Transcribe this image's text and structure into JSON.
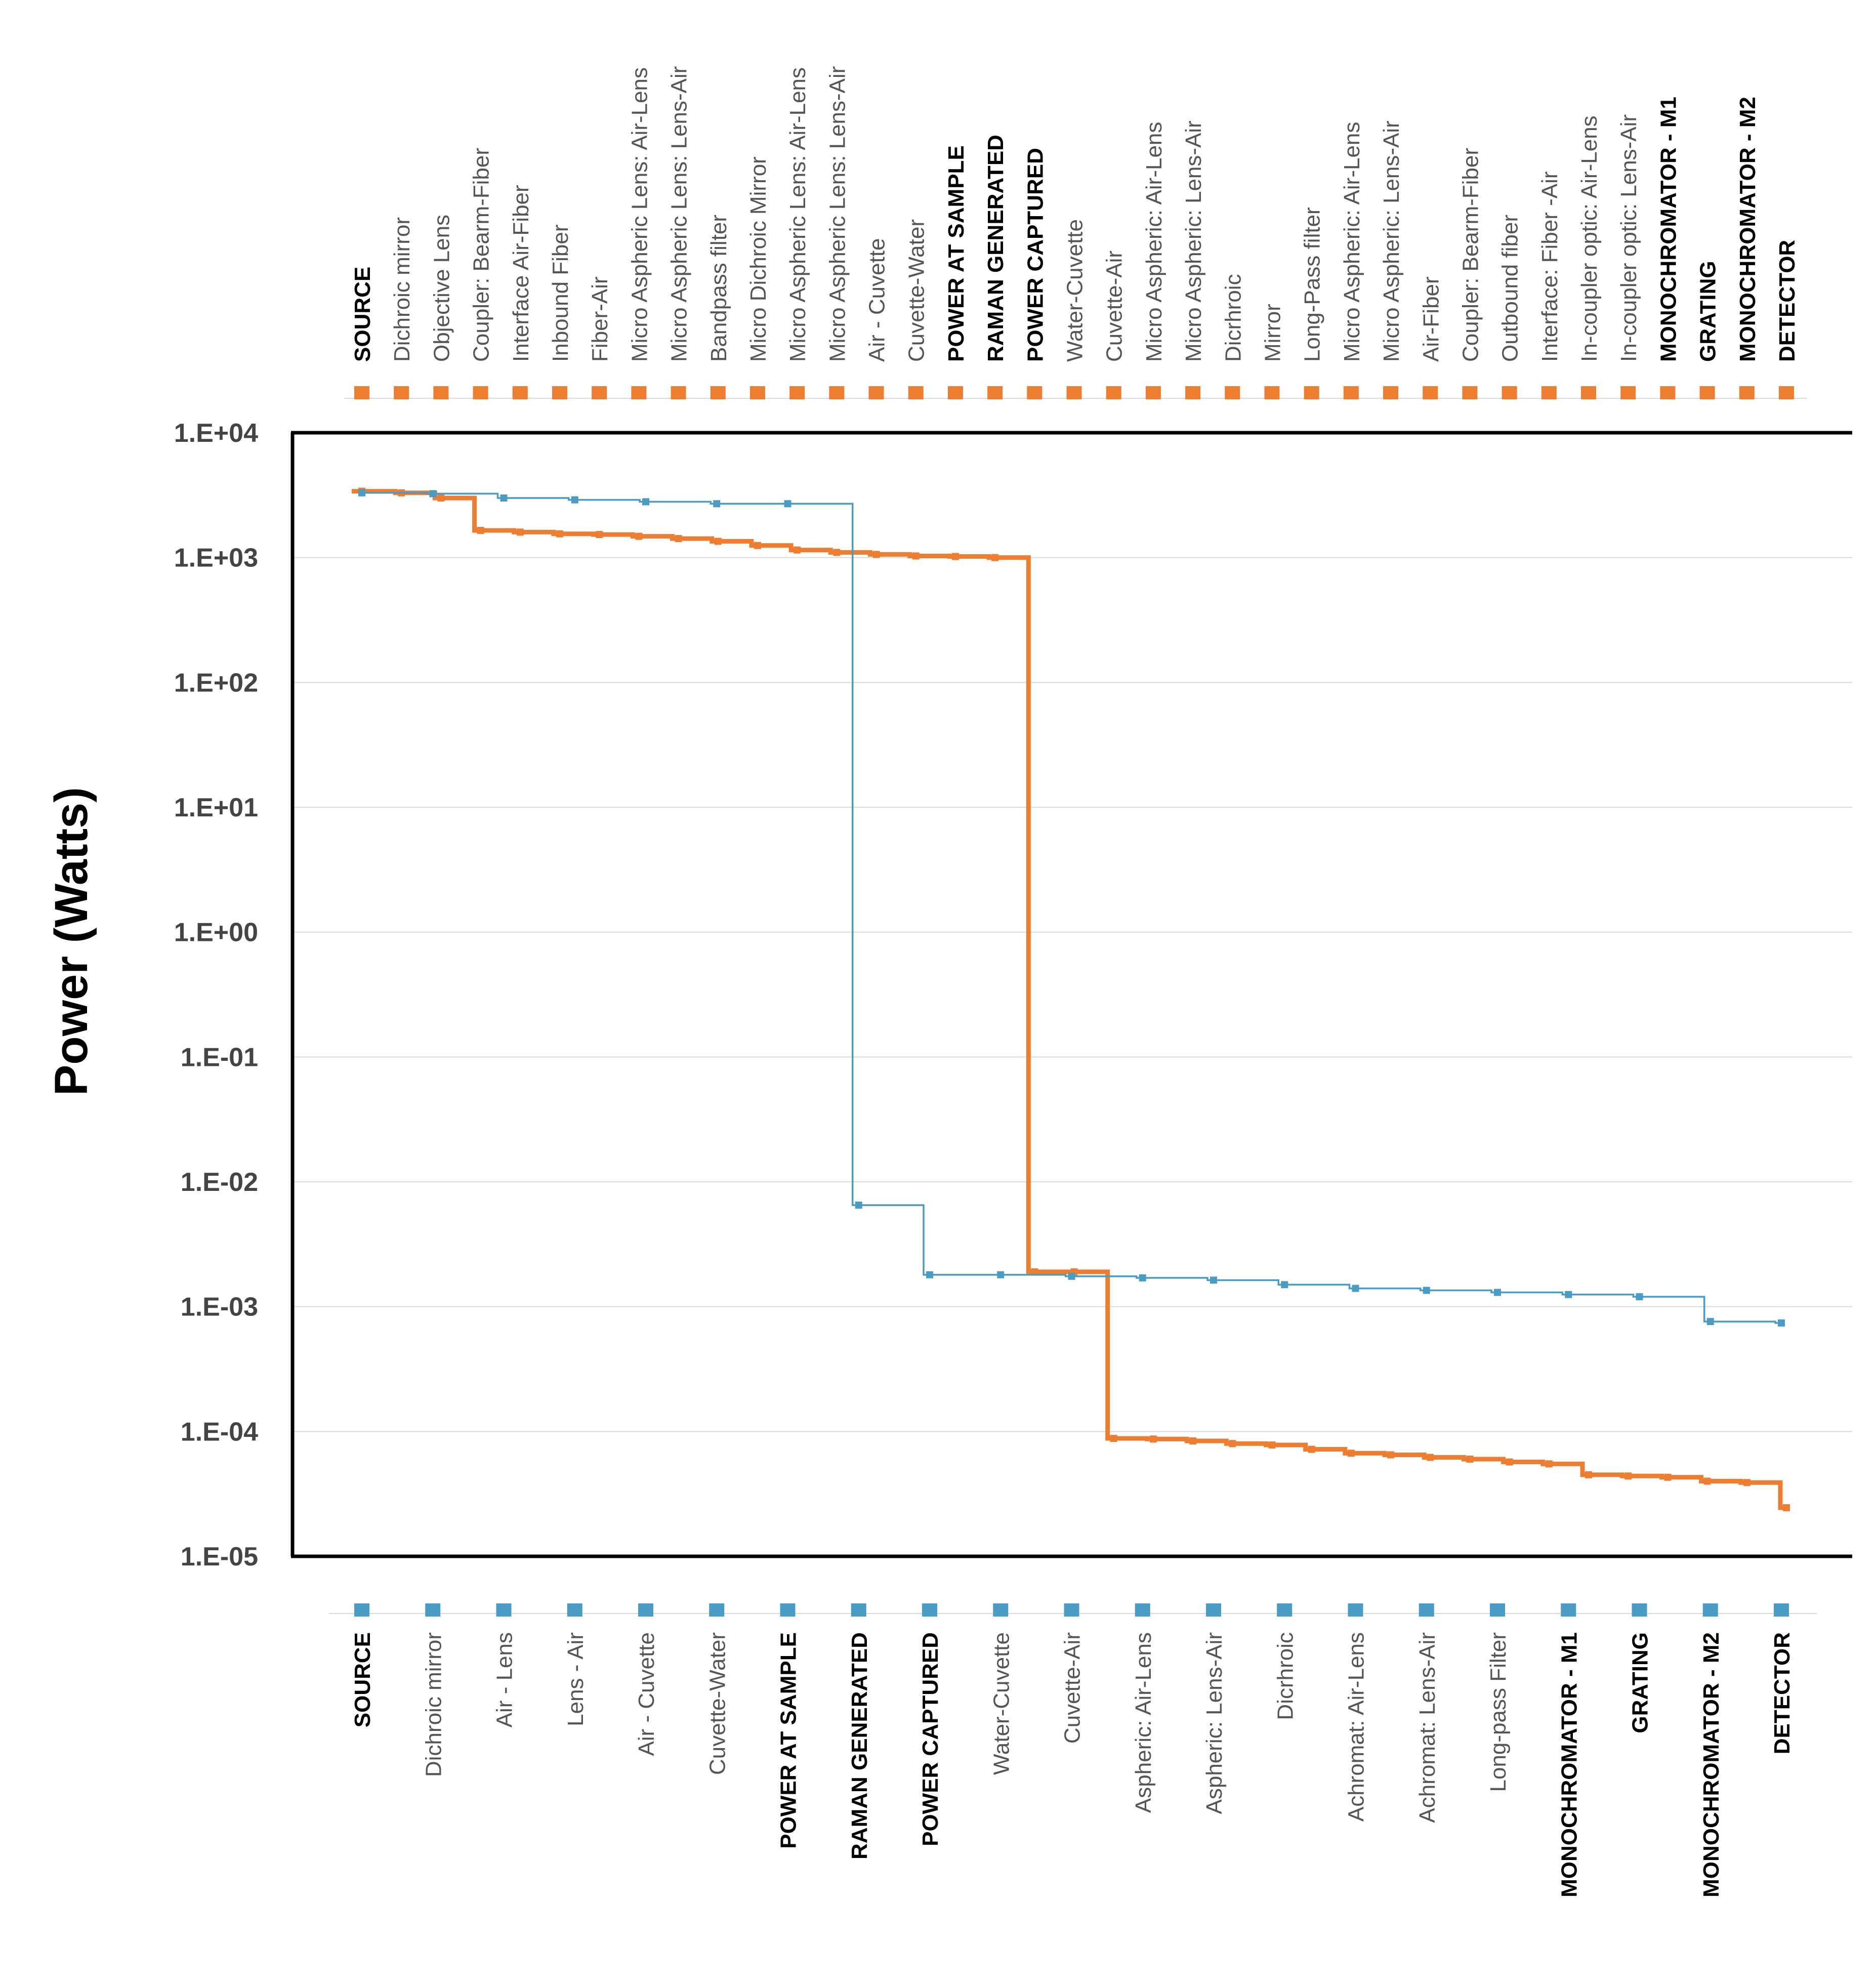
{
  "chart_data": {
    "type": "line",
    "ylabel": "Power (Watts)",
    "yscale": "log",
    "ylim": [
      1e-05,
      10000.0
    ],
    "yticks": [
      "1.E+04",
      "1.E+03",
      "1.E+02",
      "1.E+01",
      "1.E+00",
      "1.E-01",
      "1.E-02",
      "1.E-03",
      "1.E-04",
      "1.E-05"
    ],
    "grid": true,
    "colors": {
      "orange": "#ED7D31",
      "blue": "#4A9CC5",
      "axis": "#000000",
      "grid": "#D9D9D9"
    },
    "series": [
      {
        "name": "orange",
        "axis": "top",
        "categories": [
          "SOURCE",
          "Dichroic mirror",
          "Objective Lens",
          "Coupler: Bearm-Fiber",
          "Interface Air-Fiber",
          "Inbound Fiber",
          "Fiber-Air",
          "Micro Aspheric Lens: Air-Lens",
          "Micro Aspheric Lens: Lens-Air",
          "Bandpass filter",
          "Micro Dichroic Mirror",
          "Micro Aspheric Lens: Air-Lens",
          "Micro Aspheric Lens: Lens-Air",
          "Air - Cuvette",
          "Cuvette-Water",
          "POWER AT SAMPLE",
          "RAMAN GENERATED",
          "POWER CAPTURED",
          "Water-Cuvette",
          "Cuvette-Air",
          "Micro Aspheric: Air-Lens",
          "Micro Aspheric: Lens-Air",
          "Dicrhroic",
          "Mirror",
          "Long-Pass filter",
          "Micro Aspheric: Air-Lens",
          "Micro Aspheric: Lens-Air",
          "Air-Fiber",
          "Coupler: Bearm-Fiber",
          "Outbound fiber",
          "Interface: Fiber -Air",
          "In-coupler optic: Air-Lens",
          "In-coupler optic: Lens-Air",
          "MONOCHROMATOR - M1",
          "GRATING",
          "MONOCHROMATOR - M2",
          "DETECTOR"
        ],
        "bold": [
          "SOURCE",
          "POWER AT SAMPLE",
          "RAMAN GENERATED",
          "POWER CAPTURED",
          "MONOCHROMATOR - M1",
          "GRATING",
          "MONOCHROMATOR - M2",
          "DETECTOR"
        ],
        "values": [
          3400,
          3300,
          3000,
          1650,
          1600,
          1550,
          1530,
          1480,
          1420,
          1350,
          1250,
          1150,
          1100,
          1060,
          1030,
          1020,
          1000,
          0.0019,
          0.0019,
          8.8e-05,
          8.7e-05,
          8.4e-05,
          8e-05,
          7.8e-05,
          7.2e-05,
          6.7e-05,
          6.5e-05,
          6.2e-05,
          6e-05,
          5.7e-05,
          5.5e-05,
          4.5e-05,
          4.4e-05,
          4.3e-05,
          4e-05,
          3.9e-05,
          2.45e-05
        ]
      },
      {
        "name": "blue",
        "axis": "bottom",
        "categories": [
          "SOURCE",
          "Dichroic mirror",
          "Air - Lens",
          "Lens - Air",
          "Air - Cuvette",
          "Cuvette-Water",
          "POWER AT SAMPLE",
          "RAMAN GENERATED",
          "POWER CAPTURED",
          "Water-Cuvette",
          "Cuvette-Air",
          "Aspheric: Air-Lens",
          "Aspheric: Lens-Air",
          "Dicrhroic",
          "Achromat: Air-Lens",
          "Achromat: Lens-Air",
          "Long-pass Filter",
          "MONOCHROMATOR - M1",
          "GRATING",
          "MONOCHROMATOR - M2",
          "DETECTOR"
        ],
        "bold": [
          "SOURCE",
          "POWER AT SAMPLE",
          "RAMAN GENERATED",
          "POWER CAPTURED",
          "MONOCHROMATOR - M1",
          "GRATING",
          "MONOCHROMATOR - M2",
          "DETECTOR"
        ],
        "values": [
          3300,
          3250,
          3000,
          2900,
          2800,
          2700,
          2700,
          0.0065,
          0.0018,
          0.0018,
          0.00175,
          0.0017,
          0.00163,
          0.0015,
          0.0014,
          0.00135,
          0.0013,
          0.00125,
          0.0012,
          0.00076,
          0.00074
        ]
      }
    ]
  }
}
